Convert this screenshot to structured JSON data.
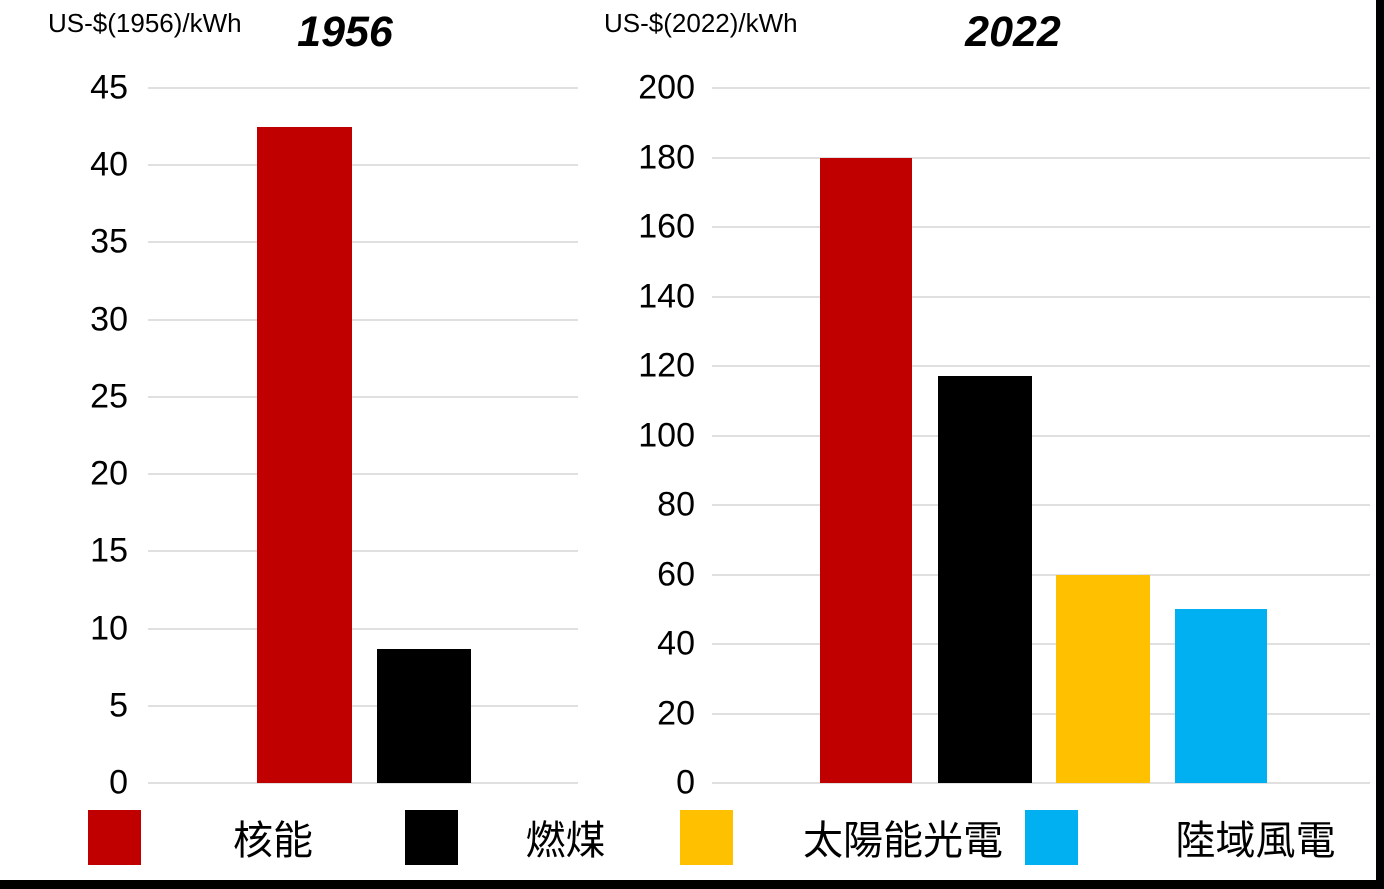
{
  "chart_data": [
    {
      "type": "bar",
      "title": "1956",
      "unit_label": "US-$(1956)/kWh",
      "ylabel": "US-$(1956)/kWh",
      "categories": [
        "核能",
        "燃煤"
      ],
      "values": [
        42.5,
        8.7
      ],
      "colors": [
        "#C00000",
        "#000000"
      ],
      "yticks": [
        "45",
        "40",
        "35",
        "30",
        "25",
        "20",
        "15",
        "10",
        "5",
        "0"
      ],
      "ylim": [
        0,
        45
      ],
      "grid": true,
      "legend_position": "bottom"
    },
    {
      "type": "bar",
      "title": "2022",
      "unit_label": "US-$(2022)/kWh",
      "ylabel": "US-$(2022)/kWh",
      "categories": [
        "核能",
        "燃煤",
        "太陽能光電",
        "陸域風電"
      ],
      "values": [
        180,
        117,
        60,
        50
      ],
      "colors": [
        "#C00000",
        "#000000",
        "#FFC000",
        "#00B0F0"
      ],
      "yticks": [
        "200",
        "180",
        "160",
        "140",
        "120",
        "100",
        "80",
        "60",
        "40",
        "20",
        "0"
      ],
      "ylim": [
        0,
        200
      ],
      "grid": true,
      "legend_position": "bottom"
    }
  ],
  "legend": {
    "items": [
      {
        "label": "核能",
        "color": "#C00000"
      },
      {
        "label": "燃煤",
        "color": "#000000"
      },
      {
        "label": "太陽能光電",
        "color": "#FFC000"
      },
      {
        "label": "陸域風電",
        "color": "#00B0F0"
      }
    ]
  },
  "colors": {
    "nuclear_red": "#C00000",
    "coal_black": "#000000",
    "solar_yellow": "#FFC000",
    "wind_blue": "#00B0F0",
    "gridline_gray": "#E0E0E0",
    "page_edge_black": "#000000"
  }
}
